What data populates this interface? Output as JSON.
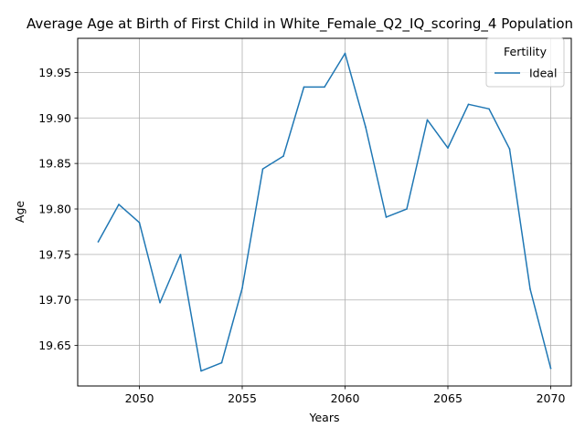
{
  "chart_data": {
    "type": "line",
    "title": "Average Age at Birth of First Child in White_Female_Q2_IQ_scoring_4 Population",
    "xlabel": "Years",
    "ylabel": "Age",
    "xlim": [
      2047,
      2071
    ],
    "ylim": [
      19.6055,
      19.9875
    ],
    "x_ticks": [
      2050,
      2055,
      2060,
      2065,
      2070
    ],
    "y_ticks": [
      19.65,
      19.7,
      19.75,
      19.8,
      19.85,
      19.9,
      19.95
    ],
    "y_tick_labels": [
      "19.65",
      "19.70",
      "19.75",
      "19.80",
      "19.85",
      "19.90",
      "19.95"
    ],
    "grid": true,
    "legend": {
      "title": "Fertility",
      "placement": "top-right"
    },
    "x": [
      2048,
      2049,
      2050,
      2051,
      2052,
      2053,
      2054,
      2055,
      2056,
      2057,
      2058,
      2059,
      2060,
      2061,
      2062,
      2063,
      2064,
      2065,
      2066,
      2067,
      2068,
      2069,
      2070
    ],
    "series": [
      {
        "name": "Ideal",
        "color": "#1f77b4",
        "values": [
          19.764,
          19.805,
          19.785,
          19.697,
          19.75,
          19.622,
          19.631,
          19.713,
          19.844,
          19.858,
          19.934,
          19.934,
          19.971,
          19.89,
          19.791,
          19.8,
          19.898,
          19.867,
          19.915,
          19.91,
          19.866,
          19.712,
          19.625
        ]
      }
    ]
  }
}
